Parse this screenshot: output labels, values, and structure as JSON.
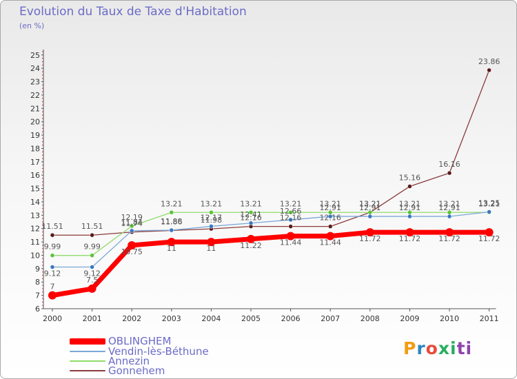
{
  "title": "Evolution du Taux de Taxe d'Habitation",
  "unit_label": "(en %)",
  "logo_text": "Proxiti",
  "chart_data": {
    "type": "line",
    "categories": [
      "2000",
      "2001",
      "2002",
      "2003",
      "2004",
      "2005",
      "2006",
      "2007",
      "2008",
      "2009",
      "2010",
      "2011"
    ],
    "ylim": [
      6,
      25
    ],
    "yticks": [
      6,
      7,
      8,
      9,
      10,
      11,
      12,
      13,
      14,
      15,
      16,
      17,
      18,
      19,
      20,
      21,
      22,
      23,
      24,
      25
    ],
    "grid": false,
    "legend": "bottom-left",
    "series": [
      {
        "name": "OBLINGHEM",
        "color": "#ff0000",
        "values": [
          7,
          7.5,
          10.75,
          11,
          11,
          11.22,
          11.44,
          11.44,
          11.72,
          11.72,
          11.72,
          11.72
        ],
        "labels": [
          "7",
          "7.5",
          "10.75",
          "11",
          "11",
          "11.22",
          "11.44",
          "11.44",
          "11.72",
          "11.72",
          "11.72",
          "11.72"
        ]
      },
      {
        "name": "Vendin-lès-Béthune",
        "color": "#7aa7d8",
        "values": [
          9.12,
          9.12,
          11.84,
          11.88,
          12.17,
          12.41,
          12.66,
          12.91,
          12.91,
          12.91,
          12.91,
          13.25
        ],
        "labels": [
          "9.12",
          "9.12",
          "11.84",
          "11.88",
          "12.17",
          "12.41",
          "12.66",
          "12.91",
          "12.91",
          "12.91",
          "12.91",
          "13.25"
        ]
      },
      {
        "name": "Annezin",
        "color": "#8fdc6a",
        "values": [
          9.99,
          9.99,
          12.19,
          13.21,
          13.21,
          13.21,
          13.21,
          13.21,
          13.21,
          13.21,
          13.21,
          13.21
        ],
        "labels": [
          "9.99",
          "9.99",
          "12.19",
          "13.21",
          "13.21",
          "13.21",
          "13.21",
          "13.21",
          "13.21",
          "13.21",
          "13.21",
          "13.21"
        ]
      },
      {
        "name": "Gonnehem",
        "color": "#8b3a3a",
        "values": [
          11.51,
          11.51,
          11.74,
          11.86,
          11.98,
          12.16,
          12.16,
          12.16,
          13.21,
          15.16,
          16.16,
          23.86
        ],
        "labels": [
          "11.51",
          "11.51",
          "11.74",
          "11.86",
          "11.98",
          "12.16",
          "12.16",
          "12.16",
          "13.21",
          "15.16",
          "16.16",
          "23.86"
        ]
      }
    ]
  },
  "colors": {
    "title": "#6b6bc7",
    "axis": "#555555",
    "axis_ticks": "#cc3333",
    "text": "#333333"
  }
}
